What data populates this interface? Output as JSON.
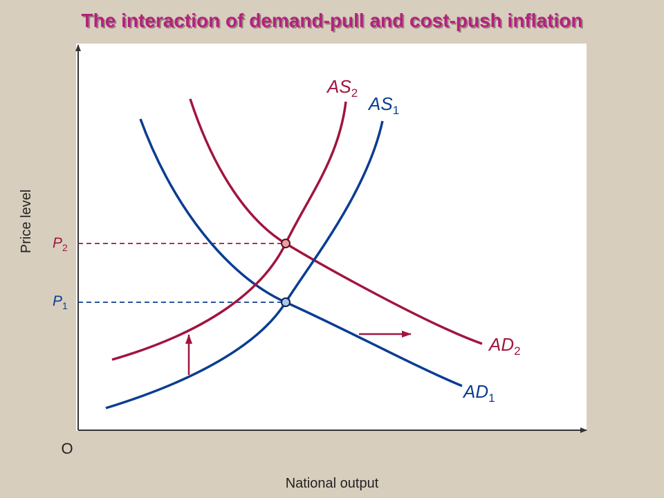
{
  "title": "The interaction of demand-pull and cost-push inflation",
  "axes": {
    "y_label": "Price level",
    "x_label": "National output",
    "origin": "O"
  },
  "curves": [
    {
      "label": "AS",
      "sub": "2"
    },
    {
      "label": "AS",
      "sub": "1"
    },
    {
      "label": "AD",
      "sub": "2"
    },
    {
      "label": "AD",
      "sub": "1"
    }
  ],
  "levels": [
    {
      "label": "P",
      "sub": "2"
    },
    {
      "label": "P",
      "sub": "1"
    }
  ]
}
